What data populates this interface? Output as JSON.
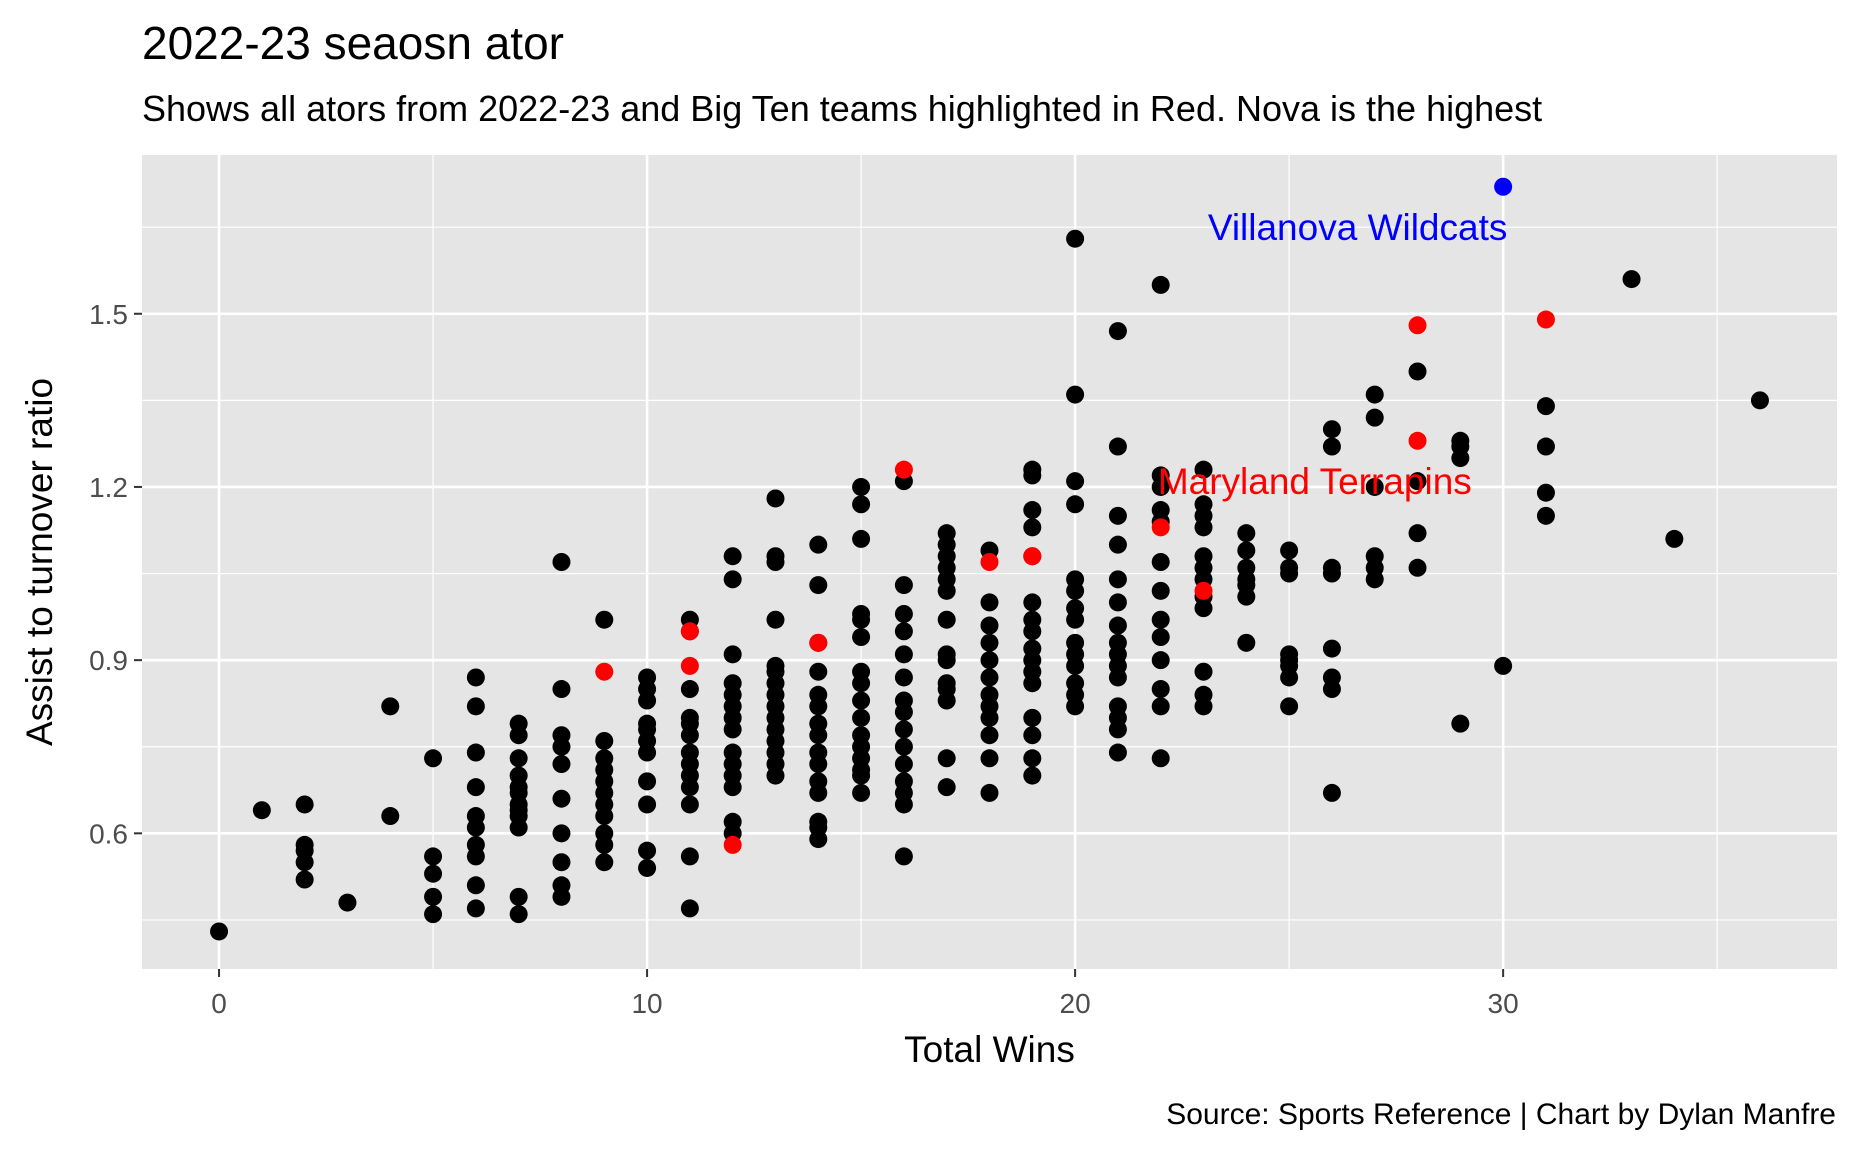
{
  "chart_data": {
    "type": "scatter",
    "title": "2022-23 seaosn ator",
    "subtitle": "Shows all ators from 2022-23 and Big Ten teams highlighted in Red. Nova is the highest",
    "caption": "Source: Sports Reference | Chart by Dylan Manfre",
    "xlabel": "Total Wins",
    "ylabel": "Assist to turnover ratio",
    "xlim": [
      -1.8,
      37.8
    ],
    "ylim": [
      0.365,
      1.775
    ],
    "xticks": [
      0,
      10,
      20,
      30
    ],
    "yticks": [
      0.6,
      0.9,
      1.2,
      1.5
    ],
    "grid": true,
    "colors": {
      "panel": "#e5e5e5",
      "grid": "#ffffff",
      "default": "#000000",
      "big_ten": "#ff0000",
      "villanova": "#0000ff"
    },
    "series": [
      {
        "color": "#000000",
        "points": [
          [
            0,
            0.43
          ],
          [
            1,
            0.64
          ],
          [
            2,
            0.65
          ],
          [
            2,
            0.58
          ],
          [
            2,
            0.57
          ],
          [
            2,
            0.55
          ],
          [
            2,
            0.52
          ],
          [
            3,
            0.48
          ],
          [
            4,
            0.82
          ],
          [
            4,
            0.63
          ],
          [
            5,
            0.73
          ],
          [
            5,
            0.56
          ],
          [
            5,
            0.53
          ],
          [
            5,
            0.49
          ],
          [
            5,
            0.46
          ],
          [
            6,
            0.87
          ],
          [
            6,
            0.82
          ],
          [
            6,
            0.74
          ],
          [
            6,
            0.68
          ],
          [
            6,
            0.63
          ],
          [
            6,
            0.61
          ],
          [
            6,
            0.58
          ],
          [
            6,
            0.56
          ],
          [
            6,
            0.51
          ],
          [
            6,
            0.47
          ],
          [
            7,
            0.79
          ],
          [
            7,
            0.77
          ],
          [
            7,
            0.73
          ],
          [
            7,
            0.7
          ],
          [
            7,
            0.68
          ],
          [
            7,
            0.67
          ],
          [
            7,
            0.65
          ],
          [
            7,
            0.64
          ],
          [
            7,
            0.63
          ],
          [
            7,
            0.61
          ],
          [
            7,
            0.49
          ],
          [
            7,
            0.46
          ],
          [
            8,
            1.07
          ],
          [
            8,
            0.85
          ],
          [
            8,
            0.77
          ],
          [
            8,
            0.75
          ],
          [
            8,
            0.72
          ],
          [
            8,
            0.66
          ],
          [
            8,
            0.6
          ],
          [
            8,
            0.55
          ],
          [
            8,
            0.51
          ],
          [
            8,
            0.49
          ],
          [
            9,
            0.97
          ],
          [
            9,
            0.76
          ],
          [
            9,
            0.73
          ],
          [
            9,
            0.71
          ],
          [
            9,
            0.69
          ],
          [
            9,
            0.67
          ],
          [
            9,
            0.65
          ],
          [
            9,
            0.63
          ],
          [
            9,
            0.6
          ],
          [
            9,
            0.58
          ],
          [
            9,
            0.55
          ],
          [
            10,
            0.87
          ],
          [
            10,
            0.85
          ],
          [
            10,
            0.83
          ],
          [
            10,
            0.79
          ],
          [
            10,
            0.78
          ],
          [
            10,
            0.76
          ],
          [
            10,
            0.74
          ],
          [
            10,
            0.69
          ],
          [
            10,
            0.65
          ],
          [
            10,
            0.57
          ],
          [
            10,
            0.54
          ],
          [
            11,
            0.97
          ],
          [
            11,
            0.95
          ],
          [
            11,
            0.85
          ],
          [
            11,
            0.8
          ],
          [
            11,
            0.79
          ],
          [
            11,
            0.77
          ],
          [
            11,
            0.74
          ],
          [
            11,
            0.72
          ],
          [
            11,
            0.7
          ],
          [
            11,
            0.68
          ],
          [
            11,
            0.65
          ],
          [
            11,
            0.56
          ],
          [
            11,
            0.47
          ],
          [
            12,
            1.08
          ],
          [
            12,
            1.04
          ],
          [
            12,
            0.91
          ],
          [
            12,
            0.86
          ],
          [
            12,
            0.84
          ],
          [
            12,
            0.82
          ],
          [
            12,
            0.8
          ],
          [
            12,
            0.78
          ],
          [
            12,
            0.74
          ],
          [
            12,
            0.72
          ],
          [
            12,
            0.7
          ],
          [
            12,
            0.68
          ],
          [
            12,
            0.62
          ],
          [
            12,
            0.6
          ],
          [
            13,
            1.18
          ],
          [
            13,
            1.08
          ],
          [
            13,
            1.07
          ],
          [
            13,
            0.97
          ],
          [
            13,
            0.89
          ],
          [
            13,
            0.88
          ],
          [
            13,
            0.86
          ],
          [
            13,
            0.84
          ],
          [
            13,
            0.82
          ],
          [
            13,
            0.8
          ],
          [
            13,
            0.78
          ],
          [
            13,
            0.76
          ],
          [
            13,
            0.74
          ],
          [
            13,
            0.72
          ],
          [
            13,
            0.7
          ],
          [
            14,
            1.1
          ],
          [
            14,
            1.03
          ],
          [
            14,
            0.93
          ],
          [
            14,
            0.88
          ],
          [
            14,
            0.84
          ],
          [
            14,
            0.82
          ],
          [
            14,
            0.79
          ],
          [
            14,
            0.77
          ],
          [
            14,
            0.74
          ],
          [
            14,
            0.72
          ],
          [
            14,
            0.69
          ],
          [
            14,
            0.67
          ],
          [
            14,
            0.62
          ],
          [
            14,
            0.61
          ],
          [
            14,
            0.59
          ],
          [
            15,
            1.2
          ],
          [
            15,
            1.17
          ],
          [
            15,
            1.11
          ],
          [
            15,
            0.98
          ],
          [
            15,
            0.97
          ],
          [
            15,
            0.94
          ],
          [
            15,
            0.88
          ],
          [
            15,
            0.86
          ],
          [
            15,
            0.83
          ],
          [
            15,
            0.8
          ],
          [
            15,
            0.77
          ],
          [
            15,
            0.75
          ],
          [
            15,
            0.73
          ],
          [
            15,
            0.71
          ],
          [
            15,
            0.7
          ],
          [
            15,
            0.67
          ],
          [
            16,
            1.21
          ],
          [
            16,
            1.03
          ],
          [
            16,
            0.98
          ],
          [
            16,
            0.95
          ],
          [
            16,
            0.91
          ],
          [
            16,
            0.87
          ],
          [
            16,
            0.83
          ],
          [
            16,
            0.81
          ],
          [
            16,
            0.78
          ],
          [
            16,
            0.75
          ],
          [
            16,
            0.72
          ],
          [
            16,
            0.69
          ],
          [
            16,
            0.67
          ],
          [
            16,
            0.65
          ],
          [
            16,
            0.56
          ],
          [
            17,
            1.12
          ],
          [
            17,
            1.1
          ],
          [
            17,
            1.08
          ],
          [
            17,
            1.06
          ],
          [
            17,
            1.04
          ],
          [
            17,
            1.02
          ],
          [
            17,
            0.97
          ],
          [
            17,
            0.91
          ],
          [
            17,
            0.9
          ],
          [
            17,
            0.86
          ],
          [
            17,
            0.85
          ],
          [
            17,
            0.83
          ],
          [
            17,
            0.73
          ],
          [
            17,
            0.68
          ],
          [
            18,
            1.09
          ],
          [
            18,
            1.0
          ],
          [
            18,
            0.96
          ],
          [
            18,
            0.93
          ],
          [
            18,
            0.9
          ],
          [
            18,
            0.87
          ],
          [
            18,
            0.84
          ],
          [
            18,
            0.82
          ],
          [
            18,
            0.8
          ],
          [
            18,
            0.77
          ],
          [
            18,
            0.73
          ],
          [
            18,
            0.67
          ],
          [
            19,
            1.23
          ],
          [
            19,
            1.22
          ],
          [
            19,
            1.16
          ],
          [
            19,
            1.13
          ],
          [
            19,
            1.08
          ],
          [
            19,
            1.0
          ],
          [
            19,
            0.97
          ],
          [
            19,
            0.95
          ],
          [
            19,
            0.92
          ],
          [
            19,
            0.9
          ],
          [
            19,
            0.88
          ],
          [
            19,
            0.86
          ],
          [
            19,
            0.8
          ],
          [
            19,
            0.77
          ],
          [
            19,
            0.73
          ],
          [
            19,
            0.7
          ],
          [
            20,
            1.63
          ],
          [
            20,
            1.36
          ],
          [
            20,
            1.21
          ],
          [
            20,
            1.17
          ],
          [
            20,
            1.04
          ],
          [
            20,
            1.02
          ],
          [
            20,
            0.99
          ],
          [
            20,
            0.97
          ],
          [
            20,
            0.93
          ],
          [
            20,
            0.91
          ],
          [
            20,
            0.89
          ],
          [
            20,
            0.86
          ],
          [
            20,
            0.84
          ],
          [
            20,
            0.82
          ],
          [
            21,
            1.47
          ],
          [
            21,
            1.27
          ],
          [
            21,
            1.15
          ],
          [
            21,
            1.1
          ],
          [
            21,
            1.04
          ],
          [
            21,
            1.0
          ],
          [
            21,
            0.96
          ],
          [
            21,
            0.93
          ],
          [
            21,
            0.91
          ],
          [
            21,
            0.89
          ],
          [
            21,
            0.87
          ],
          [
            21,
            0.82
          ],
          [
            21,
            0.8
          ],
          [
            21,
            0.78
          ],
          [
            21,
            0.74
          ],
          [
            22,
            1.55
          ],
          [
            22,
            1.22
          ],
          [
            22,
            1.2
          ],
          [
            22,
            1.16
          ],
          [
            22,
            1.14
          ],
          [
            22,
            1.07
          ],
          [
            22,
            1.02
          ],
          [
            22,
            0.97
          ],
          [
            22,
            0.94
          ],
          [
            22,
            0.9
          ],
          [
            22,
            0.85
          ],
          [
            22,
            0.82
          ],
          [
            22,
            0.73
          ],
          [
            23,
            1.23
          ],
          [
            23,
            1.17
          ],
          [
            23,
            1.15
          ],
          [
            23,
            1.13
          ],
          [
            23,
            1.08
          ],
          [
            23,
            1.06
          ],
          [
            23,
            1.04
          ],
          [
            23,
            1.01
          ],
          [
            23,
            0.99
          ],
          [
            23,
            0.88
          ],
          [
            23,
            0.84
          ],
          [
            23,
            0.82
          ],
          [
            24,
            1.12
          ],
          [
            24,
            1.09
          ],
          [
            24,
            1.06
          ],
          [
            24,
            1.04
          ],
          [
            24,
            1.03
          ],
          [
            24,
            1.01
          ],
          [
            24,
            0.93
          ],
          [
            25,
            1.09
          ],
          [
            25,
            1.06
          ],
          [
            25,
            1.05
          ],
          [
            25,
            0.91
          ],
          [
            25,
            0.9
          ],
          [
            25,
            0.89
          ],
          [
            25,
            0.87
          ],
          [
            25,
            0.82
          ],
          [
            26,
            1.3
          ],
          [
            26,
            1.27
          ],
          [
            26,
            1.06
          ],
          [
            26,
            1.05
          ],
          [
            26,
            0.92
          ],
          [
            26,
            0.87
          ],
          [
            26,
            0.85
          ],
          [
            26,
            0.67
          ],
          [
            27,
            1.36
          ],
          [
            27,
            1.32
          ],
          [
            27,
            1.2
          ],
          [
            27,
            1.08
          ],
          [
            27,
            1.06
          ],
          [
            27,
            1.04
          ],
          [
            28,
            1.4
          ],
          [
            28,
            1.21
          ],
          [
            28,
            1.12
          ],
          [
            28,
            1.06
          ],
          [
            29,
            1.28
          ],
          [
            29,
            1.27
          ],
          [
            29,
            1.25
          ],
          [
            29,
            0.79
          ],
          [
            30,
            0.89
          ],
          [
            31,
            1.34
          ],
          [
            31,
            1.27
          ],
          [
            31,
            1.19
          ],
          [
            31,
            1.15
          ],
          [
            33,
            1.56
          ],
          [
            34,
            1.11
          ],
          [
            36,
            1.35
          ]
        ]
      },
      {
        "color": "#ff0000",
        "points": [
          [
            9,
            0.88
          ],
          [
            11,
            0.95
          ],
          [
            11,
            0.89
          ],
          [
            12,
            0.58
          ],
          [
            14,
            0.93
          ],
          [
            16,
            1.23
          ],
          [
            18,
            1.07
          ],
          [
            19,
            1.08
          ],
          [
            22,
            1.13
          ],
          [
            23,
            1.02
          ],
          [
            28,
            1.48
          ],
          [
            28,
            1.28
          ],
          [
            31,
            1.49
          ]
        ]
      },
      {
        "color": "#0000ff",
        "points": [
          [
            30,
            1.72
          ]
        ]
      }
    ],
    "annotations": [
      {
        "text": "Villanova Wildcats",
        "x": 26.6,
        "y": 1.65,
        "color": "#0000ff"
      },
      {
        "text": "Maryland Terrapins",
        "x": 25.6,
        "y": 1.21,
        "color": "#ff0000"
      }
    ]
  }
}
